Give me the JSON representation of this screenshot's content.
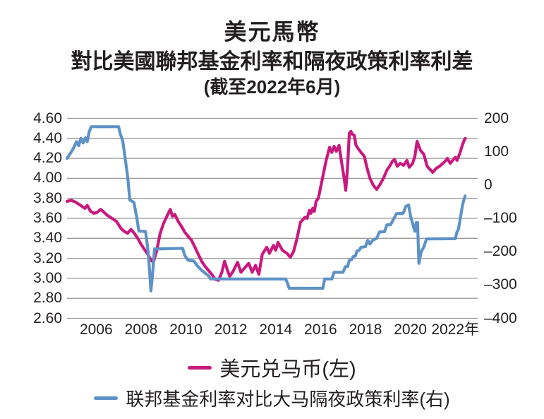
{
  "title": {
    "line1": "美元馬幣",
    "line2": "對比美國聯邦基金利率和隔夜政策利率利差",
    "subtitle": "(截至2022年6月)"
  },
  "colors": {
    "pink": "#c9197e",
    "blue": "#5d92c7",
    "grid": "#999999",
    "text": "#231f20",
    "background": "#ffffff"
  },
  "legend": [
    {
      "label": "美元兑马币(左)",
      "color_key": "pink"
    },
    {
      "label": "联邦基金利率对比大马隔夜政策利率(右)",
      "color_key": "blue"
    }
  ],
  "chart_data": {
    "type": "line",
    "title": "美元馬幣 對比美國聯邦基金利率和隔夜政策利率利差",
    "subtitle": "(截至2022年6月)",
    "grid": true,
    "legend_position": "bottom",
    "x_axis": {
      "range": [
        2004.7,
        2023.0
      ],
      "ticks": [
        {
          "year": 2006,
          "label": "2006"
        },
        {
          "year": 2008,
          "label": "2008"
        },
        {
          "year": 2010,
          "label": "2010"
        },
        {
          "year": 2012,
          "label": "2012"
        },
        {
          "year": 2014,
          "label": "2014"
        },
        {
          "year": 2016,
          "label": "2016"
        },
        {
          "year": 2018,
          "label": "2018"
        },
        {
          "year": 2020,
          "label": "2020"
        },
        {
          "year": 2022,
          "label": "2022年"
        }
      ]
    },
    "left_axis": {
      "range": [
        2.6,
        4.6
      ],
      "ticks": [
        "4.60",
        "4.40",
        "4.20",
        "4.00",
        "3.80",
        "3.60",
        "3.40",
        "3.20",
        "3.00",
        "2.80",
        "2.60"
      ]
    },
    "right_axis": {
      "range": [
        -400,
        200
      ],
      "ticks": [
        "200",
        "100",
        "0",
        "–100",
        "–200",
        "–300",
        "–400"
      ]
    },
    "series": [
      {
        "name": "美元兑马币(左)",
        "axis": "left",
        "color_key": "pink",
        "points": [
          [
            2004.7,
            3.77
          ],
          [
            2004.9,
            3.78
          ],
          [
            2005.1,
            3.76
          ],
          [
            2005.3,
            3.73
          ],
          [
            2005.5,
            3.7
          ],
          [
            2005.6,
            3.73
          ],
          [
            2005.75,
            3.67
          ],
          [
            2005.9,
            3.65
          ],
          [
            2006.05,
            3.66
          ],
          [
            2006.2,
            3.69
          ],
          [
            2006.35,
            3.66
          ],
          [
            2006.5,
            3.63
          ],
          [
            2006.7,
            3.6
          ],
          [
            2006.9,
            3.57
          ],
          [
            2007.1,
            3.5
          ],
          [
            2007.25,
            3.47
          ],
          [
            2007.4,
            3.45
          ],
          [
            2007.55,
            3.49
          ],
          [
            2007.7,
            3.45
          ],
          [
            2007.85,
            3.4
          ],
          [
            2008.0,
            3.34
          ],
          [
            2008.15,
            3.29
          ],
          [
            2008.3,
            3.24
          ],
          [
            2008.45,
            3.18
          ],
          [
            2008.55,
            3.16
          ],
          [
            2008.7,
            3.28
          ],
          [
            2008.85,
            3.45
          ],
          [
            2009.0,
            3.55
          ],
          [
            2009.15,
            3.62
          ],
          [
            2009.3,
            3.69
          ],
          [
            2009.4,
            3.62
          ],
          [
            2009.5,
            3.64
          ],
          [
            2009.65,
            3.57
          ],
          [
            2009.8,
            3.52
          ],
          [
            2009.95,
            3.46
          ],
          [
            2010.1,
            3.42
          ],
          [
            2010.25,
            3.38
          ],
          [
            2010.4,
            3.31
          ],
          [
            2010.55,
            3.24
          ],
          [
            2010.7,
            3.17
          ],
          [
            2010.85,
            3.12
          ],
          [
            2011.0,
            3.08
          ],
          [
            2011.15,
            3.04
          ],
          [
            2011.3,
            2.99
          ],
          [
            2011.45,
            2.98
          ],
          [
            2011.6,
            3.06
          ],
          [
            2011.72,
            3.17
          ],
          [
            2011.85,
            3.08
          ],
          [
            2011.95,
            3.02
          ],
          [
            2012.1,
            3.07
          ],
          [
            2012.3,
            3.16
          ],
          [
            2012.45,
            3.06
          ],
          [
            2012.6,
            3.1
          ],
          [
            2012.8,
            3.15
          ],
          [
            2012.95,
            3.06
          ],
          [
            2013.1,
            3.13
          ],
          [
            2013.25,
            3.04
          ],
          [
            2013.4,
            3.24
          ],
          [
            2013.6,
            3.31
          ],
          [
            2013.72,
            3.25
          ],
          [
            2013.9,
            3.33
          ],
          [
            2014.0,
            3.28
          ],
          [
            2014.1,
            3.36
          ],
          [
            2014.3,
            3.28
          ],
          [
            2014.5,
            3.25
          ],
          [
            2014.65,
            3.21
          ],
          [
            2014.8,
            3.27
          ],
          [
            2014.95,
            3.4
          ],
          [
            2015.1,
            3.56
          ],
          [
            2015.3,
            3.61
          ],
          [
            2015.4,
            3.6
          ],
          [
            2015.5,
            3.68
          ],
          [
            2015.57,
            3.65
          ],
          [
            2015.65,
            3.7
          ],
          [
            2015.72,
            3.67
          ],
          [
            2015.8,
            3.77
          ],
          [
            2015.9,
            3.8
          ],
          [
            2016.0,
            3.91
          ],
          [
            2016.1,
            4.02
          ],
          [
            2016.25,
            4.18
          ],
          [
            2016.4,
            4.31
          ],
          [
            2016.5,
            4.26
          ],
          [
            2016.6,
            4.32
          ],
          [
            2016.7,
            4.27
          ],
          [
            2016.82,
            4.33
          ],
          [
            2016.95,
            4.14
          ],
          [
            2017.05,
            4.0
          ],
          [
            2017.12,
            3.88
          ],
          [
            2017.2,
            4.1
          ],
          [
            2017.28,
            4.45
          ],
          [
            2017.35,
            4.47
          ],
          [
            2017.42,
            4.44
          ],
          [
            2017.5,
            4.43
          ],
          [
            2017.58,
            4.33
          ],
          [
            2017.7,
            4.29
          ],
          [
            2017.8,
            4.26
          ],
          [
            2017.95,
            4.22
          ],
          [
            2018.05,
            4.12
          ],
          [
            2018.2,
            4.0
          ],
          [
            2018.35,
            3.93
          ],
          [
            2018.5,
            3.89
          ],
          [
            2018.65,
            3.94
          ],
          [
            2018.8,
            4.0
          ],
          [
            2018.95,
            4.08
          ],
          [
            2019.1,
            4.13
          ],
          [
            2019.2,
            4.17
          ],
          [
            2019.3,
            4.19
          ],
          [
            2019.42,
            4.12
          ],
          [
            2019.55,
            4.15
          ],
          [
            2019.7,
            4.13
          ],
          [
            2019.85,
            4.18
          ],
          [
            2019.95,
            4.11
          ],
          [
            2020.1,
            4.15
          ],
          [
            2020.2,
            4.22
          ],
          [
            2020.3,
            4.37
          ],
          [
            2020.45,
            4.28
          ],
          [
            2020.6,
            4.24
          ],
          [
            2020.75,
            4.12
          ],
          [
            2021.0,
            4.06
          ],
          [
            2021.15,
            4.1
          ],
          [
            2021.3,
            4.12
          ],
          [
            2021.55,
            4.17
          ],
          [
            2021.65,
            4.2
          ],
          [
            2021.78,
            4.15
          ],
          [
            2021.92,
            4.19
          ],
          [
            2022.0,
            4.21
          ],
          [
            2022.08,
            4.18
          ],
          [
            2022.15,
            4.22
          ],
          [
            2022.22,
            4.26
          ],
          [
            2022.3,
            4.32
          ],
          [
            2022.4,
            4.38
          ],
          [
            2022.45,
            4.4
          ]
        ]
      },
      {
        "name": "联邦基金利率对比大马隔夜政策利率(右)",
        "axis": "right",
        "color_key": "blue",
        "points": [
          [
            2004.7,
            80
          ],
          [
            2004.85,
            95
          ],
          [
            2005.0,
            112
          ],
          [
            2005.12,
            130
          ],
          [
            2005.22,
            118
          ],
          [
            2005.32,
            140
          ],
          [
            2005.42,
            126
          ],
          [
            2005.52,
            142
          ],
          [
            2005.6,
            130
          ],
          [
            2005.68,
            158
          ],
          [
            2005.78,
            175
          ],
          [
            2007.0,
            175
          ],
          [
            2007.08,
            152
          ],
          [
            2007.18,
            133
          ],
          [
            2007.28,
            85
          ],
          [
            2007.4,
            25
          ],
          [
            2007.5,
            -45
          ],
          [
            2007.68,
            -52
          ],
          [
            2007.8,
            -95
          ],
          [
            2007.9,
            -138
          ],
          [
            2008.2,
            -140
          ],
          [
            2008.3,
            -192
          ],
          [
            2008.36,
            -240
          ],
          [
            2008.44,
            -318
          ],
          [
            2008.52,
            -260
          ],
          [
            2008.6,
            -192
          ],
          [
            2009.85,
            -190
          ],
          [
            2009.95,
            -212
          ],
          [
            2010.1,
            -226
          ],
          [
            2010.35,
            -228
          ],
          [
            2010.5,
            -242
          ],
          [
            2010.7,
            -256
          ],
          [
            2010.88,
            -266
          ],
          [
            2011.0,
            -272
          ],
          [
            2011.1,
            -282
          ],
          [
            2014.45,
            -282
          ],
          [
            2014.6,
            -310
          ],
          [
            2016.1,
            -310
          ],
          [
            2016.18,
            -282
          ],
          [
            2016.5,
            -282
          ],
          [
            2016.6,
            -262
          ],
          [
            2017.0,
            -262
          ],
          [
            2017.1,
            -245
          ],
          [
            2017.2,
            -245
          ],
          [
            2017.28,
            -226
          ],
          [
            2017.38,
            -224
          ],
          [
            2017.45,
            -215
          ],
          [
            2017.55,
            -213
          ],
          [
            2017.62,
            -198
          ],
          [
            2017.72,
            -196
          ],
          [
            2017.8,
            -187
          ],
          [
            2018.0,
            -185
          ],
          [
            2018.1,
            -166
          ],
          [
            2018.2,
            -177
          ],
          [
            2018.32,
            -166
          ],
          [
            2018.5,
            -160
          ],
          [
            2018.62,
            -141
          ],
          [
            2018.85,
            -140
          ],
          [
            2018.95,
            -120
          ],
          [
            2019.12,
            -119
          ],
          [
            2019.25,
            -103
          ],
          [
            2019.38,
            -86
          ],
          [
            2019.68,
            -85
          ],
          [
            2019.8,
            -64
          ],
          [
            2019.92,
            -60
          ],
          [
            2020.02,
            -96
          ],
          [
            2020.12,
            -120
          ],
          [
            2020.2,
            -139
          ],
          [
            2020.26,
            -113
          ],
          [
            2020.32,
            -113
          ],
          [
            2020.38,
            -235
          ],
          [
            2020.48,
            -200
          ],
          [
            2020.6,
            -186
          ],
          [
            2020.72,
            -162
          ],
          [
            2022.0,
            -161
          ],
          [
            2022.08,
            -141
          ],
          [
            2022.14,
            -134
          ],
          [
            2022.2,
            -110
          ],
          [
            2022.28,
            -78
          ],
          [
            2022.34,
            -56
          ],
          [
            2022.44,
            -33
          ]
        ]
      }
    ]
  }
}
